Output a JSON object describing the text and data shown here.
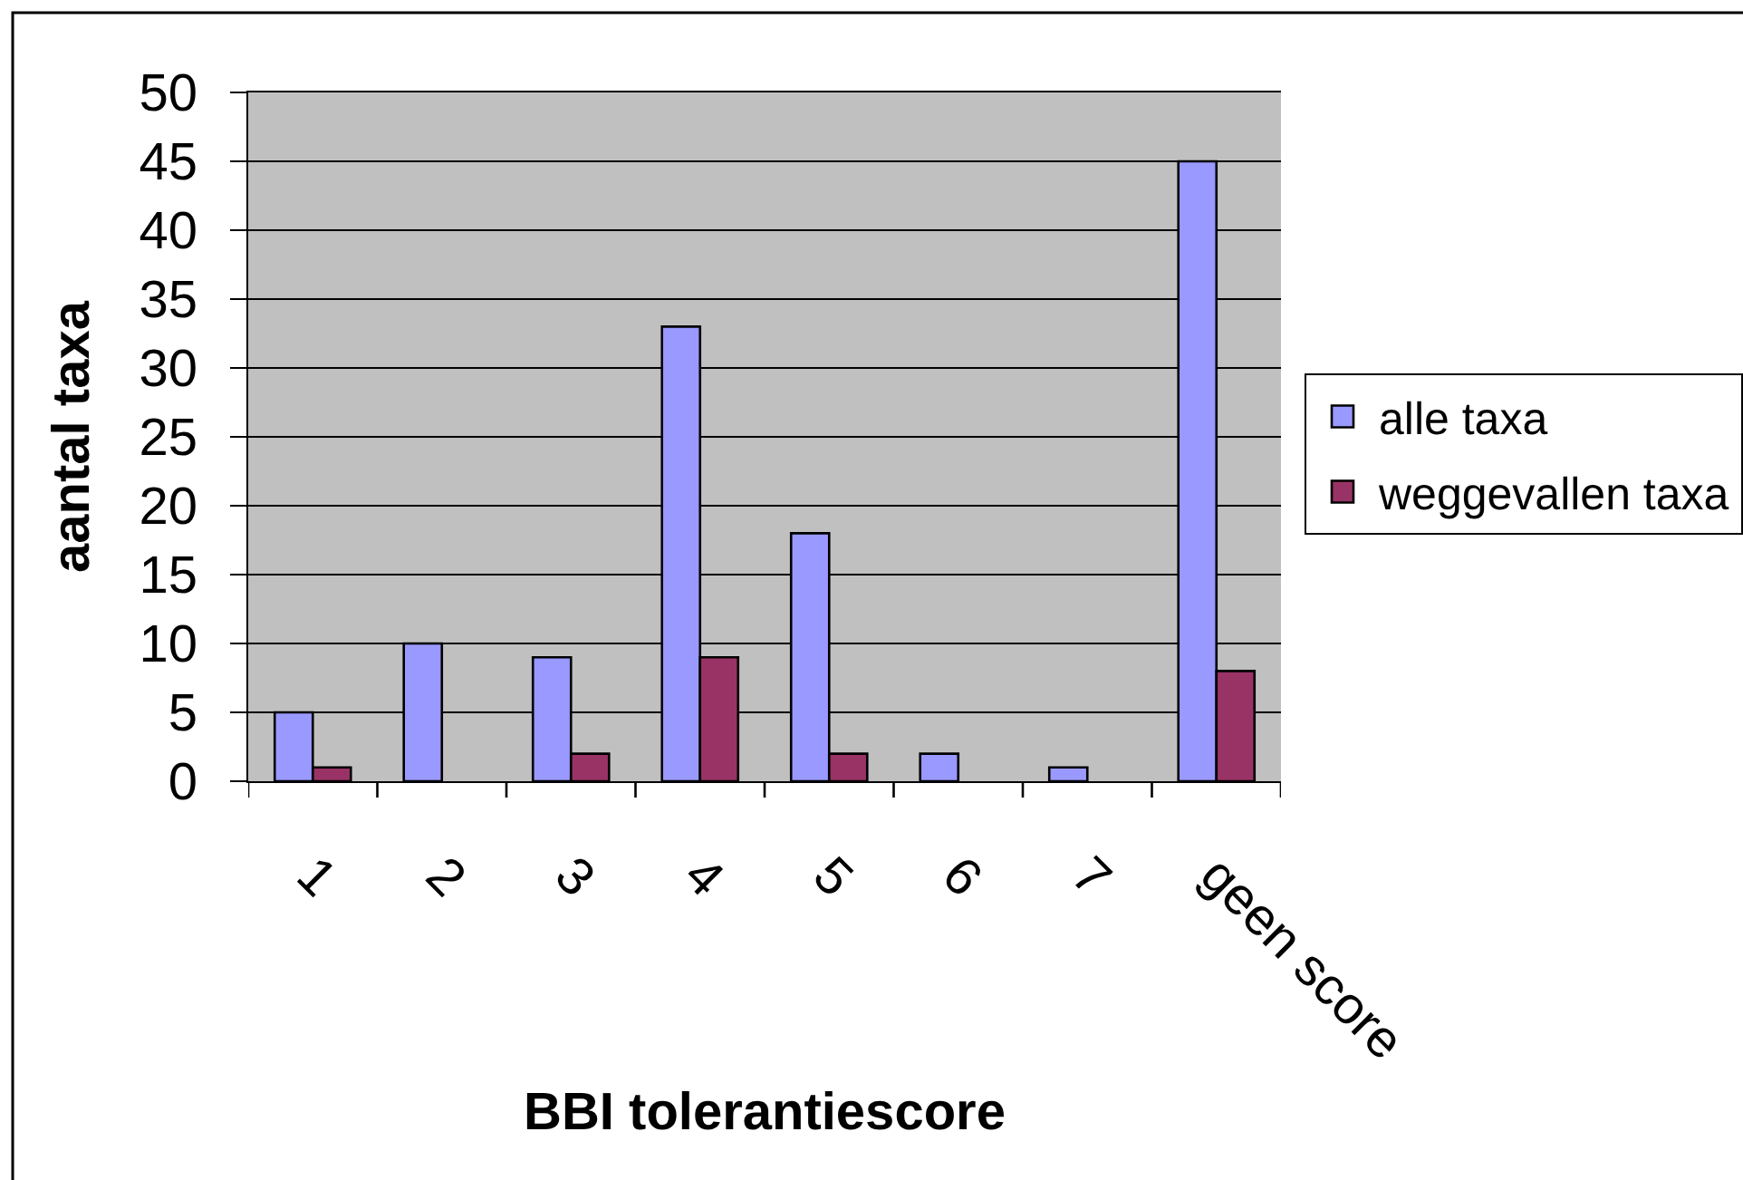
{
  "chart_data": {
    "type": "bar",
    "xlabel": "BBI tolerantiescore",
    "ylabel": "aantal taxa",
    "categories": [
      "1",
      "2",
      "3",
      "4",
      "5",
      "6",
      "7",
      "geen score"
    ],
    "series": [
      {
        "name": "alle taxa",
        "color": "#9999ff",
        "values": [
          5,
          10,
          9,
          33,
          18,
          2,
          1,
          45
        ]
      },
      {
        "name": "weggevallen taxa",
        "color": "#993366",
        "values": [
          1,
          0,
          2,
          9,
          2,
          0,
          0,
          8
        ]
      }
    ],
    "ylim": [
      0,
      50
    ],
    "yticks": [
      0,
      5,
      10,
      15,
      20,
      25,
      30,
      35,
      40,
      45,
      50
    ],
    "grid": "y",
    "legend": "right"
  }
}
